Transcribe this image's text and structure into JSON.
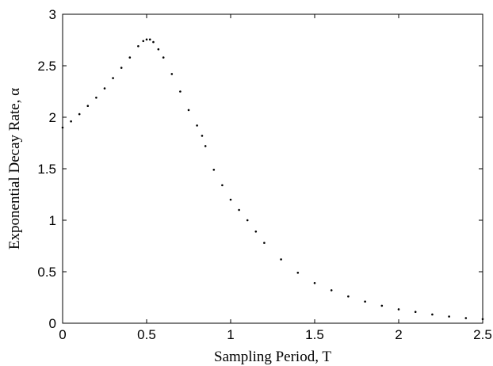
{
  "chart_data": {
    "type": "scatter",
    "title": "",
    "xlabel": "Sampling Period, T",
    "ylabel": "Exponential Decay Rate, α",
    "xlim": [
      0,
      2.5
    ],
    "ylim": [
      0,
      3
    ],
    "xticks": [
      0,
      0.5,
      1,
      1.5,
      2,
      2.5
    ],
    "xtick_labels": [
      "0",
      "0.5",
      "1",
      "1.5",
      "2",
      "2.5"
    ],
    "yticks": [
      0,
      0.5,
      1,
      1.5,
      2,
      2.5,
      3
    ],
    "ytick_labels": [
      "0",
      "0.5",
      "1",
      "1.5",
      "2",
      "2.5",
      "3"
    ],
    "grid": false,
    "marker_color": "#000000",
    "series": [
      {
        "points": [
          [
            0.0,
            1.9
          ],
          [
            0.05,
            1.96
          ],
          [
            0.1,
            2.03
          ],
          [
            0.15,
            2.11
          ],
          [
            0.2,
            2.19
          ],
          [
            0.25,
            2.28
          ],
          [
            0.3,
            2.38
          ],
          [
            0.35,
            2.48
          ],
          [
            0.4,
            2.58
          ],
          [
            0.45,
            2.69
          ],
          [
            0.48,
            2.74
          ],
          [
            0.5,
            2.755
          ],
          [
            0.52,
            2.755
          ],
          [
            0.54,
            2.73
          ],
          [
            0.57,
            2.66
          ],
          [
            0.6,
            2.58
          ],
          [
            0.65,
            2.42
          ],
          [
            0.7,
            2.25
          ],
          [
            0.75,
            2.07
          ],
          [
            0.8,
            1.92
          ],
          [
            0.83,
            1.82
          ],
          [
            0.85,
            1.72
          ],
          [
            0.9,
            1.49
          ],
          [
            0.95,
            1.34
          ],
          [
            1.0,
            1.2
          ],
          [
            1.05,
            1.1
          ],
          [
            1.1,
            1.0
          ],
          [
            1.15,
            0.89
          ],
          [
            1.2,
            0.78
          ],
          [
            1.3,
            0.62
          ],
          [
            1.4,
            0.49
          ],
          [
            1.5,
            0.39
          ],
          [
            1.6,
            0.32
          ],
          [
            1.7,
            0.26
          ],
          [
            1.8,
            0.21
          ],
          [
            1.9,
            0.17
          ],
          [
            2.0,
            0.135
          ],
          [
            2.1,
            0.11
          ],
          [
            2.2,
            0.085
          ],
          [
            2.3,
            0.065
          ],
          [
            2.4,
            0.05
          ],
          [
            2.5,
            0.04
          ]
        ]
      }
    ]
  }
}
